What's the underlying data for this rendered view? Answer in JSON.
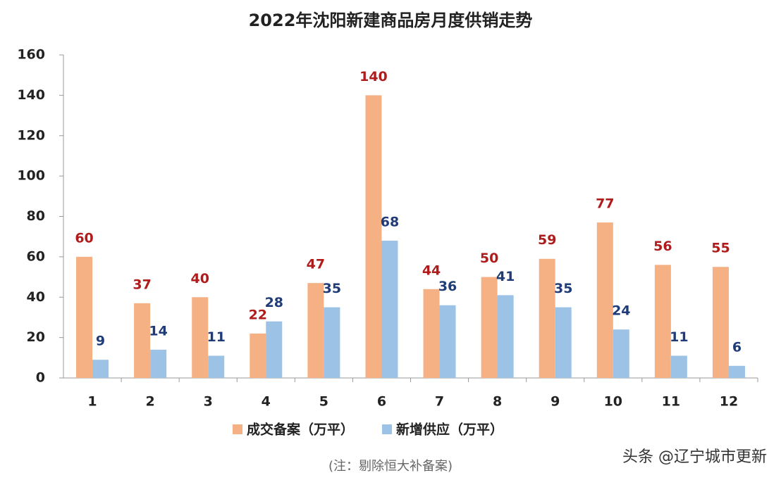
{
  "chart_data": {
    "type": "bar",
    "title": "2022年沈阳新建商品房月度供销走势",
    "categories": [
      "1",
      "2",
      "3",
      "4",
      "5",
      "6",
      "7",
      "8",
      "9",
      "10",
      "11",
      "12"
    ],
    "series": [
      {
        "name": "成交备案（万平）",
        "color": "#f5b183",
        "label_color": "#b01c1c",
        "values": [
          60,
          37,
          40,
          22,
          47,
          140,
          44,
          50,
          59,
          77,
          56,
          55
        ]
      },
      {
        "name": "新增供应（万平）",
        "color": "#9cc2e5",
        "label_color": "#1f3c78",
        "values": [
          9,
          14,
          11,
          28,
          35,
          68,
          36,
          41,
          35,
          24,
          11,
          6
        ]
      }
    ],
    "ylim": [
      0,
      160
    ],
    "yticks": [
      0,
      20,
      40,
      60,
      80,
      100,
      120,
      140,
      160
    ],
    "grid": false,
    "note": "(注：剔除恒大补备案)",
    "watermark": "头条 @辽宁城市更新"
  }
}
